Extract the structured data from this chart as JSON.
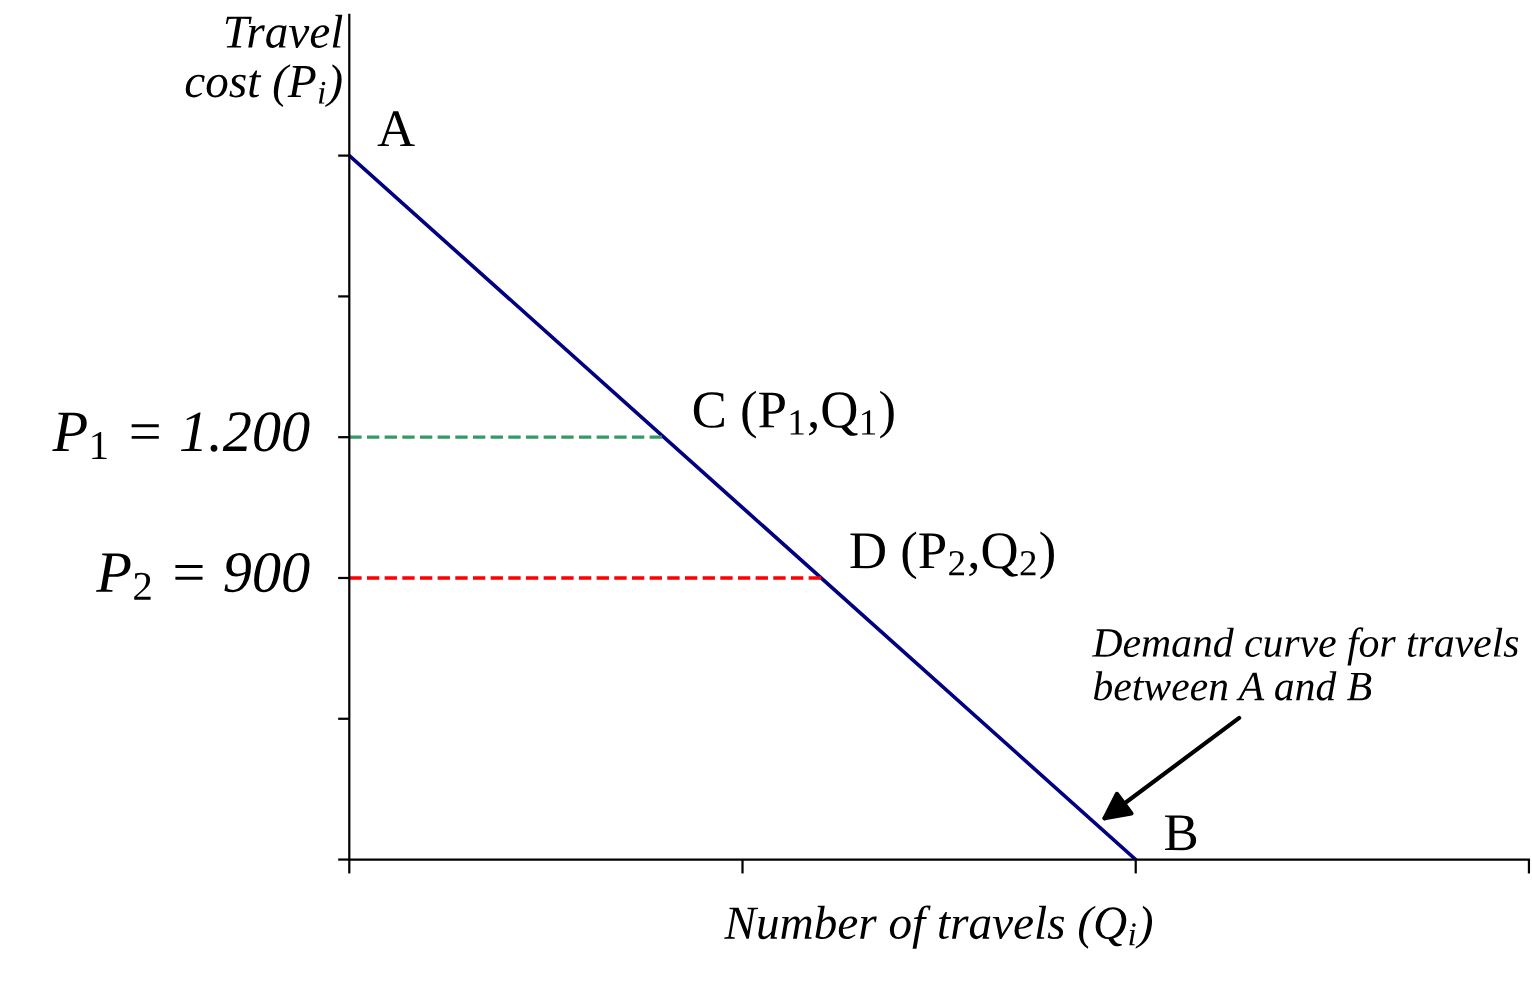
{
  "chart_data": {
    "type": "line",
    "ylabel": "Travel\ncost (P$_{i}$)",
    "xlabel": "Number of travels (Q$_{i}$)",
    "categories": [
      null,
      null,
      null,
      null
    ],
    "series": [
      {
        "color": "#000080",
        "values": [
          1800,
          1050,
          300,
          null
        ]
      }
    ],
    "ylim": [
      300,
      2100
    ],
    "yticks": [
      {
        "value": 300,
        "label": null
      },
      {
        "value": 600,
        "label": null
      },
      {
        "value": 900,
        "label": null
      },
      {
        "value": 1200,
        "label": null
      },
      {
        "value": 1500,
        "label": null
      },
      {
        "value": 1800,
        "label": null
      }
    ],
    "ref_lines": [
      {
        "axis": "y",
        "value": 1200,
        "label": "P$_{1}$ = 1.200",
        "color": "#339966",
        "line_style": "dashed"
      },
      {
        "axis": "y",
        "value": 900,
        "label": "P$_{2}$ = 900",
        "color": "#ff0000",
        "line_style": "dashed"
      }
    ],
    "annotations": [
      "A",
      "B",
      "C (P$_{1}$,Q$_{1}$)",
      "D (P$_{2}$,Q$_{2}$)",
      "Demand curve for travels\nbetween A and B"
    ],
    "grid": false,
    "marker": "none",
    "line_style": "solid"
  }
}
